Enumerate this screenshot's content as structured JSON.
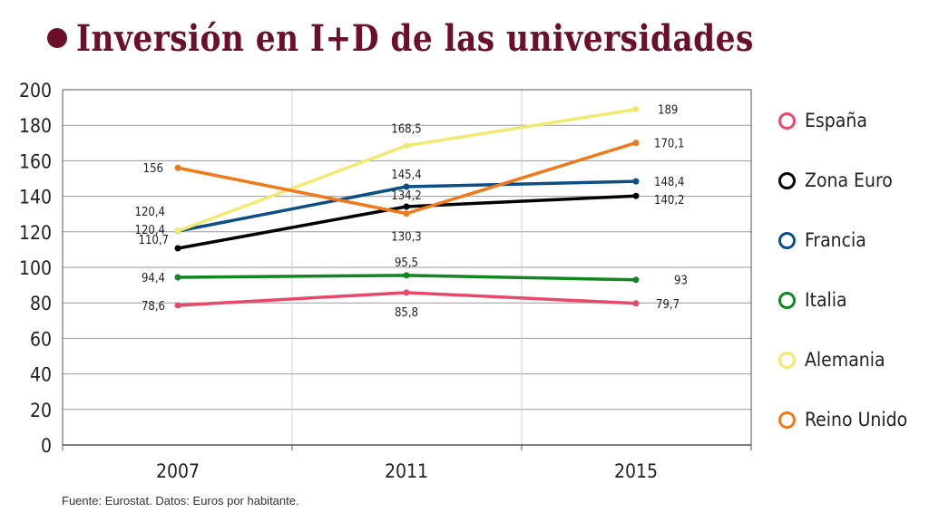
{
  "title": "Inversión en I+D de las universidades",
  "source": "Fuente: Eurostat. Datos: Euros por habitante.",
  "chart_data": {
    "type": "line",
    "title": "Inversión en I+D de las universidades",
    "xlabel": "",
    "ylabel": "",
    "x": [
      "2007",
      "2011",
      "2015"
    ],
    "ylim": [
      0,
      200
    ],
    "yticks": [
      0,
      20,
      40,
      60,
      80,
      100,
      120,
      140,
      160,
      180,
      200
    ],
    "grid": true,
    "legend_position": "right",
    "series": [
      {
        "name": "España",
        "color": "#e8486a",
        "values": [
          78.6,
          85.8,
          79.7
        ],
        "labels": [
          "78,6",
          "85,8",
          "79,7"
        ]
      },
      {
        "name": "Zona Euro",
        "color": "#000000",
        "values": [
          110.7,
          134.2,
          140.2
        ],
        "labels": [
          "110,7",
          "134,2",
          "140,2"
        ]
      },
      {
        "name": "Francia",
        "color": "#0b4f86",
        "values": [
          120.4,
          145.4,
          148.4
        ],
        "labels": [
          "120,4",
          "145,4",
          "148,4"
        ]
      },
      {
        "name": "Italia",
        "color": "#12861f",
        "values": [
          94.4,
          95.5,
          93
        ],
        "labels": [
          "94,4",
          "95,5",
          "93"
        ]
      },
      {
        "name": "Alemania",
        "color": "#f2ea70",
        "values": [
          120.4,
          168.5,
          189
        ],
        "labels": [
          "120,4",
          "168,5",
          "189"
        ]
      },
      {
        "name": "Reino Unido",
        "color": "#f07a1a",
        "values": [
          156,
          130.3,
          170.1
        ],
        "labels": [
          "156",
          "130,3",
          "170,1"
        ]
      }
    ]
  }
}
